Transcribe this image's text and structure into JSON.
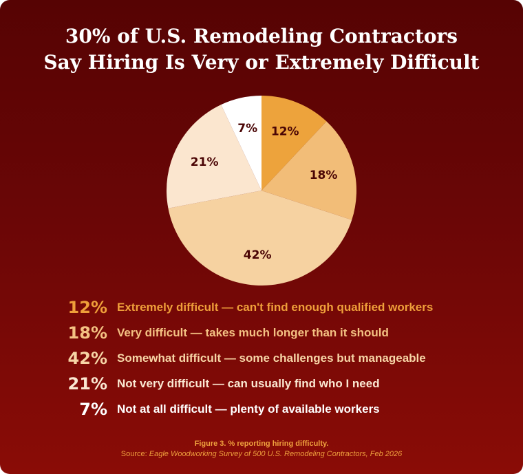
{
  "title": {
    "line1": "30% of U.S. Remodeling Contractors",
    "line2": "Say Hiring Is Very or Extremely Difficult"
  },
  "chart_data": {
    "type": "pie",
    "title": "30% of U.S. Remodeling Contractors Say Hiring Is Very or Extremely Difficult",
    "slices": [
      {
        "pct_label": "12%",
        "value": 12,
        "label": "Extremely difficult — can't find enough qualified workers",
        "color": "#eda33c",
        "text_color": "#ef9f3a"
      },
      {
        "pct_label": "18%",
        "value": 18,
        "label": "Very difficult — takes much longer than it should",
        "color": "#f2bd78",
        "text_color": "#f4c283"
      },
      {
        "pct_label": "42%",
        "value": 42,
        "label": "Somewhat difficult — some challenges but manageable",
        "color": "#f6d2a1",
        "text_color": "#f7d5a6"
      },
      {
        "pct_label": "21%",
        "value": 21,
        "label": "Not very difficult — can usually find who I need",
        "color": "#fbe6cf",
        "text_color": "#fbe8d2"
      },
      {
        "pct_label": "7%",
        "value": 7,
        "label": "Not at all difficult — plenty of available workers",
        "color": "#ffffff",
        "text_color": "#ffffff"
      }
    ],
    "label_color": "#4a0505",
    "start_angle_deg": 0,
    "direction": "clockwise"
  },
  "caption": {
    "figure": "Figure 3. % reporting hiring difficulty.",
    "source_prefix": "Source: ",
    "source_text": "Eagle Woodworking Survey of 500 U.S. Remodeling Contractors, Feb 2026"
  }
}
